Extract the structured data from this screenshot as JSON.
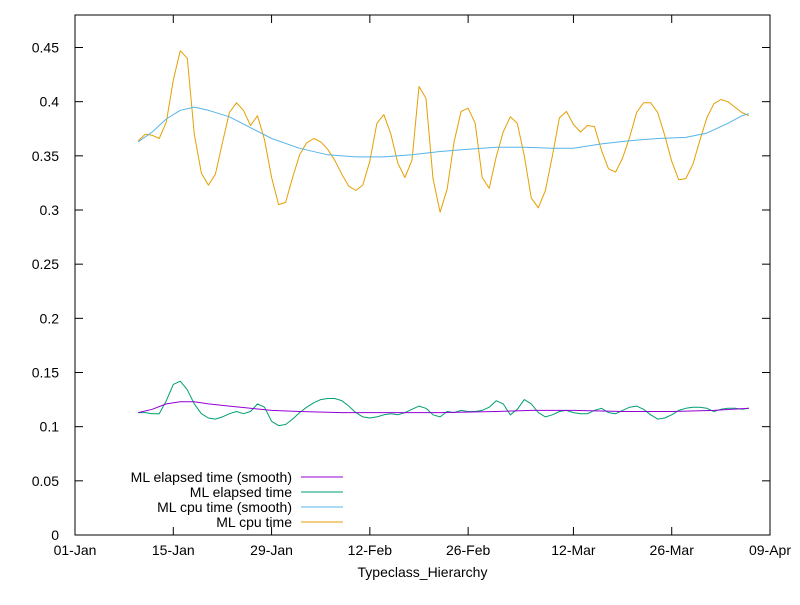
{
  "chart_data": {
    "type": "line",
    "title": "",
    "xlabel": "Typeclass_Hierarchy",
    "ylabel": "",
    "x_range": [
      "2000-01-01",
      "2000-04-09"
    ],
    "ylim": [
      0,
      0.48
    ],
    "x_ticks": [
      {
        "label": "01-Jan",
        "date": "2000-01-01"
      },
      {
        "label": "15-Jan",
        "date": "2000-01-15"
      },
      {
        "label": "29-Jan",
        "date": "2000-01-29"
      },
      {
        "label": "12-Feb",
        "date": "2000-02-12"
      },
      {
        "label": "26-Feb",
        "date": "2000-02-26"
      },
      {
        "label": "12-Mar",
        "date": "2000-03-12"
      },
      {
        "label": "26-Mar",
        "date": "2000-03-26"
      },
      {
        "label": "09-Apr",
        "date": "2000-04-09"
      }
    ],
    "y_ticks": [
      {
        "label": "0",
        "value": 0
      },
      {
        "label": "0.05",
        "value": 0.05
      },
      {
        "label": "0.1",
        "value": 0.1
      },
      {
        "label": "0.15",
        "value": 0.15
      },
      {
        "label": "0.2",
        "value": 0.2
      },
      {
        "label": "0.25",
        "value": 0.25
      },
      {
        "label": "0.3",
        "value": 0.3
      },
      {
        "label": "0.35",
        "value": 0.35
      },
      {
        "label": "0.4",
        "value": 0.4
      },
      {
        "label": "0.45",
        "value": 0.45
      }
    ],
    "grid": false,
    "legend_position": "bottom-left",
    "series": [
      {
        "name": "ML elapsed time (smooth)",
        "color": "#9400d3",
        "points": [
          [
            "2000-01-10",
            0.113
          ],
          [
            "2000-01-12",
            0.116
          ],
          [
            "2000-01-14",
            0.121
          ],
          [
            "2000-01-16",
            0.123
          ],
          [
            "2000-01-18",
            0.123
          ],
          [
            "2000-01-20",
            0.121
          ],
          [
            "2000-01-23",
            0.119
          ],
          [
            "2000-01-26",
            0.117
          ],
          [
            "2000-01-29",
            0.115
          ],
          [
            "2000-02-02",
            0.114
          ],
          [
            "2000-02-08",
            0.113
          ],
          [
            "2000-02-15",
            0.113
          ],
          [
            "2000-02-22",
            0.113
          ],
          [
            "2000-03-01",
            0.114
          ],
          [
            "2000-03-06",
            0.115
          ],
          [
            "2000-03-12",
            0.115
          ],
          [
            "2000-03-19",
            0.114
          ],
          [
            "2000-03-26",
            0.114
          ],
          [
            "2000-04-01",
            0.115
          ],
          [
            "2000-04-06",
            0.117
          ]
        ]
      },
      {
        "name": "ML elapsed time",
        "color": "#009e73",
        "points": [
          [
            "2000-01-10",
            0.113
          ],
          [
            "2000-01-11",
            0.113
          ],
          [
            "2000-01-12",
            0.112
          ],
          [
            "2000-01-13",
            0.112
          ],
          [
            "2000-01-14",
            0.124
          ],
          [
            "2000-01-15",
            0.139
          ],
          [
            "2000-01-16",
            0.142
          ],
          [
            "2000-01-17",
            0.134
          ],
          [
            "2000-01-18",
            0.121
          ],
          [
            "2000-01-19",
            0.112
          ],
          [
            "2000-01-20",
            0.108
          ],
          [
            "2000-01-21",
            0.107
          ],
          [
            "2000-01-22",
            0.109
          ],
          [
            "2000-01-23",
            0.112
          ],
          [
            "2000-01-24",
            0.114
          ],
          [
            "2000-01-25",
            0.112
          ],
          [
            "2000-01-26",
            0.114
          ],
          [
            "2000-01-27",
            0.121
          ],
          [
            "2000-01-28",
            0.118
          ],
          [
            "2000-01-29",
            0.105
          ],
          [
            "2000-01-30",
            0.101
          ],
          [
            "2000-01-31",
            0.102
          ],
          [
            "2000-02-01",
            0.107
          ],
          [
            "2000-02-02",
            0.113
          ],
          [
            "2000-02-03",
            0.118
          ],
          [
            "2000-02-04",
            0.122
          ],
          [
            "2000-02-05",
            0.125
          ],
          [
            "2000-02-06",
            0.126
          ],
          [
            "2000-02-07",
            0.126
          ],
          [
            "2000-02-08",
            0.124
          ],
          [
            "2000-02-09",
            0.119
          ],
          [
            "2000-02-10",
            0.113
          ],
          [
            "2000-02-11",
            0.109
          ],
          [
            "2000-02-12",
            0.108
          ],
          [
            "2000-02-13",
            0.109
          ],
          [
            "2000-02-14",
            0.111
          ],
          [
            "2000-02-15",
            0.112
          ],
          [
            "2000-02-16",
            0.111
          ],
          [
            "2000-02-17",
            0.113
          ],
          [
            "2000-02-18",
            0.116
          ],
          [
            "2000-02-19",
            0.119
          ],
          [
            "2000-02-20",
            0.117
          ],
          [
            "2000-02-21",
            0.111
          ],
          [
            "2000-02-22",
            0.109
          ],
          [
            "2000-02-23",
            0.114
          ],
          [
            "2000-02-24",
            0.113
          ],
          [
            "2000-02-25",
            0.115
          ],
          [
            "2000-02-26",
            0.114
          ],
          [
            "2000-02-27",
            0.114
          ],
          [
            "2000-02-28",
            0.115
          ],
          [
            "2000-02-29",
            0.118
          ],
          [
            "2000-03-01",
            0.124
          ],
          [
            "2000-03-02",
            0.121
          ],
          [
            "2000-03-03",
            0.111
          ],
          [
            "2000-03-04",
            0.116
          ],
          [
            "2000-03-05",
            0.125
          ],
          [
            "2000-03-06",
            0.121
          ],
          [
            "2000-03-07",
            0.113
          ],
          [
            "2000-03-08",
            0.109
          ],
          [
            "2000-03-09",
            0.111
          ],
          [
            "2000-03-10",
            0.114
          ],
          [
            "2000-03-11",
            0.115
          ],
          [
            "2000-03-12",
            0.113
          ],
          [
            "2000-03-13",
            0.112
          ],
          [
            "2000-03-14",
            0.112
          ],
          [
            "2000-03-15",
            0.115
          ],
          [
            "2000-03-16",
            0.117
          ],
          [
            "2000-03-17",
            0.113
          ],
          [
            "2000-03-18",
            0.112
          ],
          [
            "2000-03-19",
            0.115
          ],
          [
            "2000-03-20",
            0.118
          ],
          [
            "2000-03-21",
            0.119
          ],
          [
            "2000-03-22",
            0.116
          ],
          [
            "2000-03-23",
            0.111
          ],
          [
            "2000-03-24",
            0.107
          ],
          [
            "2000-03-25",
            0.108
          ],
          [
            "2000-03-26",
            0.111
          ],
          [
            "2000-03-27",
            0.115
          ],
          [
            "2000-03-28",
            0.117
          ],
          [
            "2000-03-29",
            0.118
          ],
          [
            "2000-03-30",
            0.118
          ],
          [
            "2000-03-31",
            0.117
          ],
          [
            "2000-04-01",
            0.114
          ],
          [
            "2000-04-02",
            0.116
          ],
          [
            "2000-04-03",
            0.117
          ],
          [
            "2000-04-04",
            0.117
          ],
          [
            "2000-04-05",
            0.116
          ],
          [
            "2000-04-06",
            0.117
          ]
        ]
      },
      {
        "name": "ML cpu time (smooth)",
        "color": "#56b4e9",
        "points": [
          [
            "2000-01-10",
            0.363
          ],
          [
            "2000-01-12",
            0.372
          ],
          [
            "2000-01-14",
            0.384
          ],
          [
            "2000-01-16",
            0.392
          ],
          [
            "2000-01-18",
            0.395
          ],
          [
            "2000-01-20",
            0.392
          ],
          [
            "2000-01-23",
            0.386
          ],
          [
            "2000-01-26",
            0.376
          ],
          [
            "2000-01-29",
            0.366
          ],
          [
            "2000-02-02",
            0.357
          ],
          [
            "2000-02-06",
            0.351
          ],
          [
            "2000-02-10",
            0.349
          ],
          [
            "2000-02-14",
            0.349
          ],
          [
            "2000-02-18",
            0.351
          ],
          [
            "2000-02-22",
            0.354
          ],
          [
            "2000-02-26",
            0.356
          ],
          [
            "2000-03-01",
            0.358
          ],
          [
            "2000-03-05",
            0.358
          ],
          [
            "2000-03-09",
            0.357
          ],
          [
            "2000-03-12",
            0.357
          ],
          [
            "2000-03-16",
            0.361
          ],
          [
            "2000-03-20",
            0.364
          ],
          [
            "2000-03-24",
            0.366
          ],
          [
            "2000-03-28",
            0.367
          ],
          [
            "2000-03-31",
            0.371
          ],
          [
            "2000-04-03",
            0.38
          ],
          [
            "2000-04-05",
            0.387
          ],
          [
            "2000-04-06",
            0.389
          ]
        ]
      },
      {
        "name": "ML cpu time",
        "color": "#e69f00",
        "points": [
          [
            "2000-01-10",
            0.364
          ],
          [
            "2000-01-11",
            0.37
          ],
          [
            "2000-01-12",
            0.369
          ],
          [
            "2000-01-13",
            0.366
          ],
          [
            "2000-01-14",
            0.381
          ],
          [
            "2000-01-15",
            0.42
          ],
          [
            "2000-01-16",
            0.447
          ],
          [
            "2000-01-17",
            0.44
          ],
          [
            "2000-01-18",
            0.37
          ],
          [
            "2000-01-19",
            0.334
          ],
          [
            "2000-01-20",
            0.323
          ],
          [
            "2000-01-21",
            0.333
          ],
          [
            "2000-01-22",
            0.362
          ],
          [
            "2000-01-23",
            0.39
          ],
          [
            "2000-01-24",
            0.399
          ],
          [
            "2000-01-25",
            0.392
          ],
          [
            "2000-01-26",
            0.378
          ],
          [
            "2000-01-27",
            0.387
          ],
          [
            "2000-01-28",
            0.365
          ],
          [
            "2000-01-29",
            0.33
          ],
          [
            "2000-01-30",
            0.305
          ],
          [
            "2000-01-31",
            0.307
          ],
          [
            "2000-02-01",
            0.33
          ],
          [
            "2000-02-02",
            0.351
          ],
          [
            "2000-02-03",
            0.362
          ],
          [
            "2000-02-04",
            0.366
          ],
          [
            "2000-02-05",
            0.363
          ],
          [
            "2000-02-06",
            0.356
          ],
          [
            "2000-02-07",
            0.346
          ],
          [
            "2000-02-08",
            0.333
          ],
          [
            "2000-02-09",
            0.322
          ],
          [
            "2000-02-10",
            0.318
          ],
          [
            "2000-02-11",
            0.323
          ],
          [
            "2000-02-12",
            0.345
          ],
          [
            "2000-02-13",
            0.38
          ],
          [
            "2000-02-14",
            0.388
          ],
          [
            "2000-02-15",
            0.37
          ],
          [
            "2000-02-16",
            0.343
          ],
          [
            "2000-02-17",
            0.33
          ],
          [
            "2000-02-18",
            0.346
          ],
          [
            "2000-02-19",
            0.414
          ],
          [
            "2000-02-20",
            0.403
          ],
          [
            "2000-02-21",
            0.329
          ],
          [
            "2000-02-22",
            0.298
          ],
          [
            "2000-02-23",
            0.319
          ],
          [
            "2000-02-24",
            0.363
          ],
          [
            "2000-02-25",
            0.391
          ],
          [
            "2000-02-26",
            0.394
          ],
          [
            "2000-02-27",
            0.38
          ],
          [
            "2000-02-28",
            0.33
          ],
          [
            "2000-02-29",
            0.32
          ],
          [
            "2000-03-01",
            0.349
          ],
          [
            "2000-03-02",
            0.372
          ],
          [
            "2000-03-03",
            0.386
          ],
          [
            "2000-03-04",
            0.38
          ],
          [
            "2000-03-05",
            0.35
          ],
          [
            "2000-03-06",
            0.311
          ],
          [
            "2000-03-07",
            0.302
          ],
          [
            "2000-03-08",
            0.318
          ],
          [
            "2000-03-09",
            0.35
          ],
          [
            "2000-03-10",
            0.385
          ],
          [
            "2000-03-11",
            0.391
          ],
          [
            "2000-03-12",
            0.379
          ],
          [
            "2000-03-13",
            0.372
          ],
          [
            "2000-03-14",
            0.378
          ],
          [
            "2000-03-15",
            0.377
          ],
          [
            "2000-03-16",
            0.355
          ],
          [
            "2000-03-17",
            0.338
          ],
          [
            "2000-03-18",
            0.335
          ],
          [
            "2000-03-19",
            0.348
          ],
          [
            "2000-03-20",
            0.367
          ],
          [
            "2000-03-21",
            0.39
          ],
          [
            "2000-03-22",
            0.399
          ],
          [
            "2000-03-23",
            0.399
          ],
          [
            "2000-03-24",
            0.39
          ],
          [
            "2000-03-25",
            0.369
          ],
          [
            "2000-03-26",
            0.345
          ],
          [
            "2000-03-27",
            0.328
          ],
          [
            "2000-03-28",
            0.329
          ],
          [
            "2000-03-29",
            0.342
          ],
          [
            "2000-03-30",
            0.364
          ],
          [
            "2000-03-31",
            0.385
          ],
          [
            "2000-04-01",
            0.398
          ],
          [
            "2000-04-02",
            0.402
          ],
          [
            "2000-04-03",
            0.4
          ],
          [
            "2000-04-04",
            0.395
          ],
          [
            "2000-04-05",
            0.39
          ],
          [
            "2000-04-06",
            0.387
          ]
        ]
      }
    ]
  }
}
